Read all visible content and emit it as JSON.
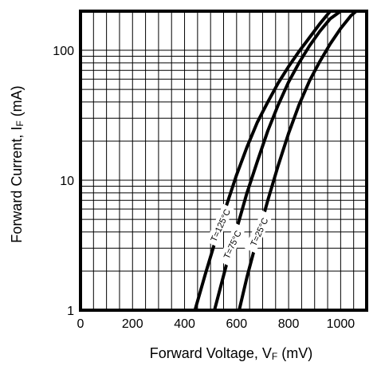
{
  "chart_data": {
    "type": "line",
    "title": "",
    "xlabel": "Forward Voltage, V",
    "xlabel_sub": "F",
    "xlabel_unit": " (mV)",
    "ylabel": "Forward Current, I",
    "ylabel_sub": "F",
    "ylabel_unit": " (mA)",
    "xlim": [
      0,
      1100
    ],
    "ylim": [
      1,
      200
    ],
    "y_scale": "log",
    "grid": true,
    "x_ticks": [
      0,
      200,
      400,
      600,
      800,
      1000
    ],
    "x_tick_labels": [
      "0",
      "200",
      "400",
      "600",
      "800",
      "1000"
    ],
    "y_ticks": [
      1,
      10,
      100
    ],
    "y_tick_labels": [
      "1",
      "10",
      "100"
    ],
    "series": [
      {
        "name": "T=125°C",
        "x": [
          440,
          480,
          520,
          560,
          600,
          640,
          680,
          720,
          760,
          800,
          840,
          880,
          920,
          960
        ],
        "y": [
          1,
          1.9,
          3.5,
          6.3,
          11,
          18,
          28,
          40,
          56,
          75,
          98,
          125,
          160,
          200
        ]
      },
      {
        "name": "T=75°C",
        "x": [
          515,
          560,
          600,
          640,
          680,
          720,
          760,
          800,
          840,
          880,
          920,
          960,
          1000
        ],
        "y": [
          1,
          2.2,
          4.2,
          8,
          14,
          24,
          38,
          57,
          80,
          108,
          140,
          175,
          200
        ]
      },
      {
        "name": "T=25°C",
        "x": [
          610,
          640,
          680,
          720,
          760,
          800,
          840,
          880,
          920,
          960,
          1000,
          1040,
          1060
        ],
        "y": [
          1,
          1.8,
          3.6,
          7,
          13,
          23,
          38,
          58,
          82,
          112,
          147,
          185,
          200
        ]
      }
    ]
  }
}
